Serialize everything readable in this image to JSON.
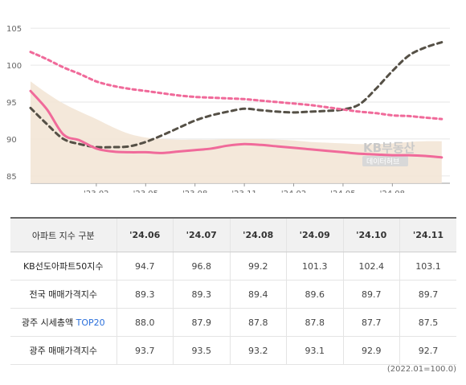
{
  "chart_data": {
    "type": "line",
    "ylim": [
      84,
      106
    ],
    "y_ticks": [
      85,
      90,
      95,
      100,
      105
    ],
    "x_tick_labels": [
      "'23.02",
      "'23.05",
      "'23.08",
      "'23.11",
      "'24.02",
      "'24.05",
      "'24.08"
    ],
    "grid": true,
    "series": [
      {
        "name": "KB선도아파트50지수",
        "color": "#555046",
        "style": "dashed",
        "x": [
          "2022.10",
          "2022.11",
          "2022.12",
          "2023.01",
          "2023.02",
          "2023.03",
          "2023.04",
          "2023.05",
          "2023.06",
          "2023.07",
          "2023.08",
          "2023.09",
          "2023.10",
          "2023.11",
          "2023.12",
          "2024.01",
          "2024.02",
          "2024.03",
          "2024.04",
          "2024.05",
          "2024.06",
          "2024.07",
          "2024.08",
          "2024.09",
          "2024.10",
          "2024.11"
        ],
        "values": [
          94.2,
          92.0,
          90.0,
          89.3,
          88.9,
          88.9,
          89.0,
          89.6,
          90.5,
          91.5,
          92.5,
          93.2,
          93.7,
          94.1,
          93.9,
          93.7,
          93.6,
          93.7,
          93.8,
          94.0,
          94.7,
          96.8,
          99.2,
          101.3,
          102.4,
          103.1
        ]
      },
      {
        "name": "전국 매매가격지수",
        "color": "#eed9c0",
        "style": "area",
        "x": [
          "2022.10",
          "2022.11",
          "2022.12",
          "2023.01",
          "2023.02",
          "2023.03",
          "2023.04",
          "2023.05",
          "2023.06",
          "2023.07",
          "2023.08",
          "2023.09",
          "2023.10",
          "2023.11",
          "2023.12",
          "2024.01",
          "2024.02",
          "2024.03",
          "2024.04",
          "2024.05",
          "2024.06",
          "2024.07",
          "2024.08",
          "2024.09",
          "2024.10",
          "2024.11"
        ],
        "values": [
          97.8,
          96.2,
          94.8,
          93.7,
          92.7,
          91.6,
          90.7,
          90.2,
          90.0,
          89.9,
          89.9,
          89.9,
          90.0,
          90.0,
          90.0,
          89.9,
          89.8,
          89.6,
          89.5,
          89.4,
          89.3,
          89.3,
          89.4,
          89.6,
          89.7,
          89.7
        ]
      },
      {
        "name": "광주 시세총액 TOP20",
        "color": "#f06a9a",
        "style": "solid",
        "x": [
          "2022.10",
          "2022.11",
          "2022.12",
          "2023.01",
          "2023.02",
          "2023.03",
          "2023.04",
          "2023.05",
          "2023.06",
          "2023.07",
          "2023.08",
          "2023.09",
          "2023.10",
          "2023.11",
          "2023.12",
          "2024.01",
          "2024.02",
          "2024.03",
          "2024.04",
          "2024.05",
          "2024.06",
          "2024.07",
          "2024.08",
          "2024.09",
          "2024.10",
          "2024.11"
        ],
        "values": [
          96.5,
          94.0,
          90.6,
          89.8,
          88.7,
          88.3,
          88.2,
          88.2,
          88.1,
          88.3,
          88.5,
          88.7,
          89.1,
          89.3,
          89.2,
          89.0,
          88.8,
          88.6,
          88.4,
          88.2,
          88.0,
          87.9,
          87.8,
          87.8,
          87.7,
          87.5
        ]
      },
      {
        "name": "광주 매매가격지수",
        "color": "#f06a9a",
        "style": "dotted",
        "x": [
          "2022.10",
          "2022.11",
          "2022.12",
          "2023.01",
          "2023.02",
          "2023.03",
          "2023.04",
          "2023.05",
          "2023.06",
          "2023.07",
          "2023.08",
          "2023.09",
          "2023.10",
          "2023.11",
          "2023.12",
          "2024.01",
          "2024.02",
          "2024.03",
          "2024.04",
          "2024.05",
          "2024.06",
          "2024.07",
          "2024.08",
          "2024.09",
          "2024.10",
          "2024.11"
        ],
        "values": [
          101.8,
          100.8,
          99.7,
          98.8,
          97.8,
          97.2,
          96.8,
          96.5,
          96.2,
          95.9,
          95.7,
          95.6,
          95.5,
          95.4,
          95.2,
          95.0,
          94.8,
          94.6,
          94.3,
          94.0,
          93.7,
          93.5,
          93.2,
          93.1,
          92.9,
          92.7
        ]
      }
    ]
  },
  "watermark": {
    "line1": "KB부동산",
    "line2": "데이터허브"
  },
  "table": {
    "header_label": "아파트 지수 구분",
    "columns": [
      "'24.06",
      "'24.07",
      "'24.08",
      "'24.09",
      "'24.10",
      "'24.11"
    ],
    "rows": [
      {
        "label": "KB선도아파트50지수",
        "values": [
          "94.7",
          "96.8",
          "99.2",
          "101.3",
          "102.4",
          "103.1"
        ]
      },
      {
        "label": "전국 매매가격지수",
        "values": [
          "89.3",
          "89.3",
          "89.4",
          "89.6",
          "89.7",
          "89.7"
        ]
      },
      {
        "label": "광주 시세총액 ",
        "label_highlight": "TOP20",
        "values": [
          "88.0",
          "87.9",
          "87.8",
          "87.8",
          "87.7",
          "87.5"
        ]
      },
      {
        "label": "광주 매매가격지수",
        "values": [
          "93.7",
          "93.5",
          "93.2",
          "93.1",
          "92.9",
          "92.7"
        ]
      }
    ]
  },
  "note": "(2022.01=100.0)",
  "colors": {
    "accent_blue": "#2a6fdb",
    "area_fill": "#f3e6d6",
    "pink": "#f06a9a",
    "dark_dash": "#555046"
  }
}
